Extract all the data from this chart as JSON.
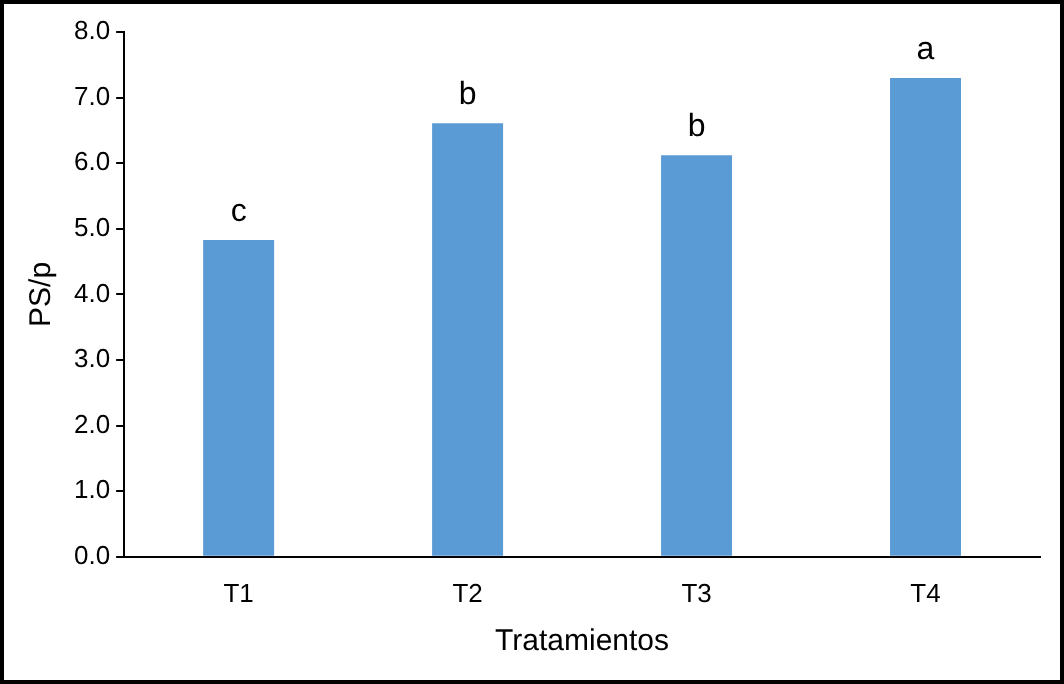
{
  "chart_data": {
    "type": "bar",
    "xlabel": "Tratamientos",
    "ylabel": "PS/p",
    "categories": [
      "T1",
      "T2",
      "T3",
      "T4"
    ],
    "values": [
      4.83,
      6.61,
      6.12,
      7.3
    ],
    "color": "#5b9bd5",
    "value_labels": [
      "c",
      "b",
      "b",
      "a"
    ],
    "ylim": [
      0,
      8
    ],
    "yticks": [
      {
        "value": 0,
        "label": "0.0"
      },
      {
        "value": 1,
        "label": "1.0"
      },
      {
        "value": 2,
        "label": "2.0"
      },
      {
        "value": 3,
        "label": "3.0"
      },
      {
        "value": 4,
        "label": "4.0"
      },
      {
        "value": 5,
        "label": "5.0"
      },
      {
        "value": 6,
        "label": "6.0"
      },
      {
        "value": 7,
        "label": "7.0"
      },
      {
        "value": 8,
        "label": "8.0"
      }
    ],
    "grid": false,
    "legend": false
  }
}
